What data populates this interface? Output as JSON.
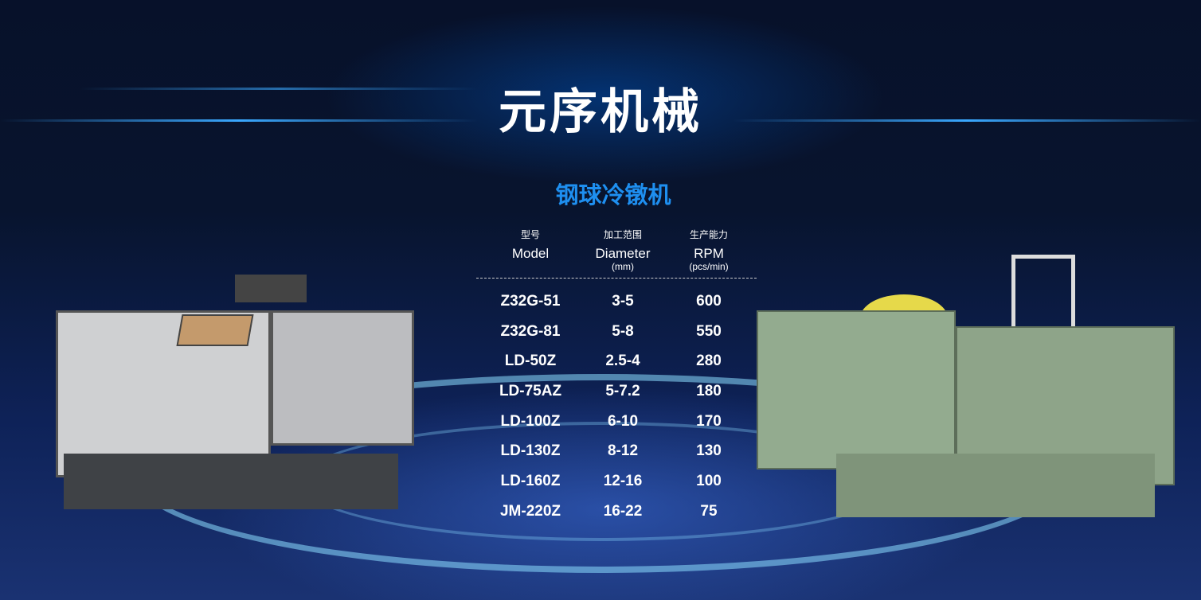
{
  "header": {
    "title": "元序机械"
  },
  "section": {
    "subtitle": "钢球冷镦机"
  },
  "table": {
    "columns": [
      {
        "cn": "型号",
        "en": "Model",
        "unit": ""
      },
      {
        "cn": "加工范围",
        "en": "Diameter",
        "unit": "(mm)"
      },
      {
        "cn": "生产能力",
        "en": "RPM",
        "unit": "(pcs/min)"
      }
    ],
    "rows": [
      [
        "Z32G-51",
        "3-5",
        "600"
      ],
      [
        "Z32G-81",
        "5-8",
        "550"
      ],
      [
        "LD-50Z",
        "2.5-4",
        "280"
      ],
      [
        "LD-75AZ",
        "5-7.2",
        "180"
      ],
      [
        "LD-100Z",
        "6-10",
        "170"
      ],
      [
        "LD-130Z",
        "8-12",
        "130"
      ],
      [
        "LD-160Z",
        "12-16",
        "100"
      ],
      [
        "JM-220Z",
        "16-22",
        "75"
      ]
    ]
  },
  "colors": {
    "accent": "#1e8ff0",
    "machine_left": "#c8c9cb",
    "machine_right": "#8fa88a"
  }
}
